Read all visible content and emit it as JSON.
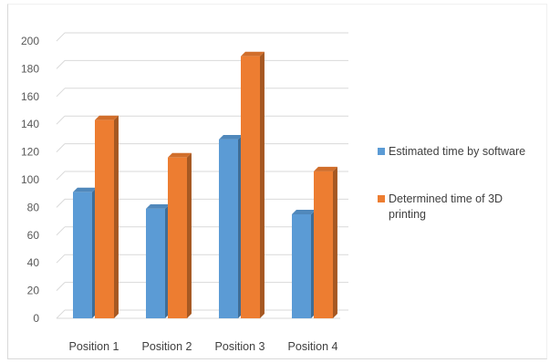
{
  "chart_data": {
    "type": "bar",
    "style": "3d-clustered-column",
    "categories": [
      "Position 1",
      "Position 2",
      "Position 3",
      "Position 4"
    ],
    "series": [
      {
        "name": "Estimated time by software",
        "values": [
          91,
          79,
          129,
          75
        ],
        "color": "#5b9bd5"
      },
      {
        "name": "Determined time of 3D printing",
        "values": [
          143,
          116,
          189,
          106
        ],
        "color": "#ed7d31"
      }
    ],
    "title": "",
    "xlabel": "",
    "ylabel": "",
    "ylim": [
      0,
      200
    ],
    "yticks": [
      0,
      20,
      40,
      60,
      80,
      100,
      120,
      140,
      160,
      180,
      200
    ],
    "grid": true,
    "legend": "right"
  }
}
